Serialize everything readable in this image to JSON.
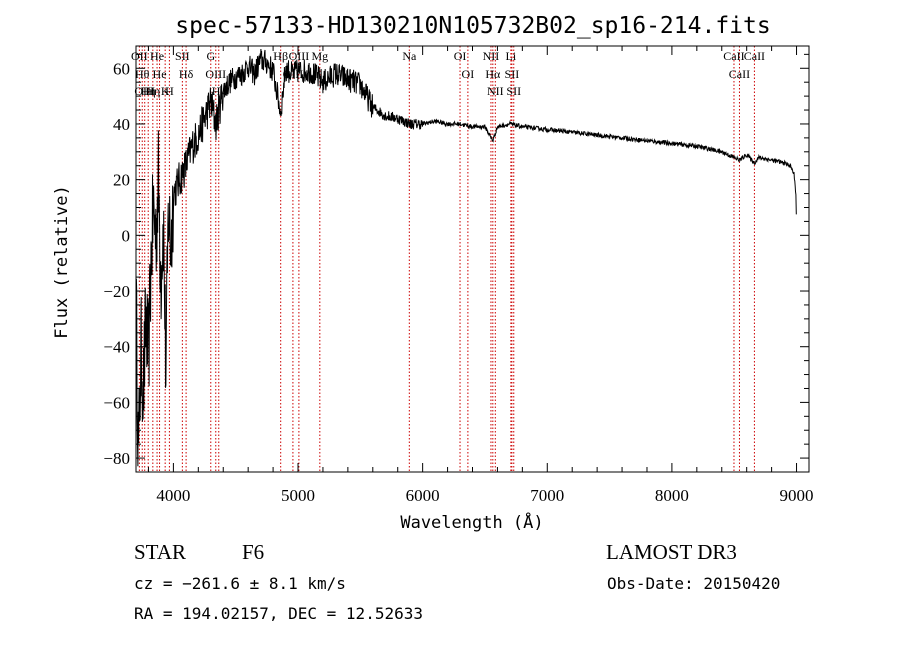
{
  "chart_data": {
    "type": "line",
    "title": "spec-57133-HD130210N105732B02_sp16-214.fits",
    "xlabel": "Wavelength (Å)",
    "ylabel": "Flux (relative)",
    "xlim": [
      3700,
      9100
    ],
    "ylim": [
      -85,
      68
    ],
    "xticks": [
      4000,
      5000,
      6000,
      7000,
      8000,
      9000
    ],
    "yticks": [
      -80,
      -60,
      -40,
      -20,
      0,
      20,
      40,
      60
    ],
    "xtick_labels": [
      "4000",
      "5000",
      "6000",
      "7000",
      "8000",
      "9000"
    ],
    "ytick_labels": [
      "−80",
      "−60",
      "−40",
      "−20",
      "0",
      "20",
      "40",
      "60"
    ],
    "grid": false,
    "line_color": "#000000",
    "marker_color": "#cc0000",
    "spectrum_anchors": [
      [
        3700,
        -20
      ],
      [
        3720,
        -80
      ],
      [
        3740,
        -40
      ],
      [
        3760,
        -55
      ],
      [
        3780,
        -30
      ],
      [
        3800,
        -45
      ],
      [
        3820,
        -10
      ],
      [
        3840,
        10
      ],
      [
        3860,
        0
      ],
      [
        3880,
        20
      ],
      [
        3900,
        -15
      ],
      [
        3920,
        5
      ],
      [
        3940,
        -50
      ],
      [
        3960,
        10
      ],
      [
        3980,
        -5
      ],
      [
        4000,
        15
      ],
      [
        4050,
        20
      ],
      [
        4100,
        25
      ],
      [
        4150,
        32
      ],
      [
        4200,
        36
      ],
      [
        4250,
        42
      ],
      [
        4300,
        48
      ],
      [
        4340,
        40
      ],
      [
        4400,
        52
      ],
      [
        4450,
        55
      ],
      [
        4500,
        57
      ],
      [
        4550,
        58
      ],
      [
        4600,
        61
      ],
      [
        4650,
        58
      ],
      [
        4700,
        63
      ],
      [
        4750,
        62
      ],
      [
        4800,
        59
      ],
      [
        4861,
        44
      ],
      [
        4900,
        60
      ],
      [
        4950,
        58
      ],
      [
        5000,
        59
      ],
      [
        5100,
        59
      ],
      [
        5200,
        55
      ],
      [
        5300,
        58
      ],
      [
        5400,
        56
      ],
      [
        5500,
        54
      ],
      [
        5600,
        46
      ],
      [
        5700,
        43
      ],
      [
        5800,
        42
      ],
      [
        5900,
        40
      ],
      [
        6000,
        40
      ],
      [
        6100,
        41
      ],
      [
        6200,
        40
      ],
      [
        6300,
        40
      ],
      [
        6400,
        39
      ],
      [
        6500,
        39
      ],
      [
        6563,
        34
      ],
      [
        6600,
        39
      ],
      [
        6700,
        40
      ],
      [
        6800,
        39
      ],
      [
        7000,
        38
      ],
      [
        7200,
        37
      ],
      [
        7400,
        36
      ],
      [
        7600,
        35
      ],
      [
        7800,
        34
      ],
      [
        8000,
        33
      ],
      [
        8200,
        32
      ],
      [
        8400,
        30
      ],
      [
        8498,
        28
      ],
      [
        8542,
        27
      ],
      [
        8600,
        29
      ],
      [
        8662,
        26
      ],
      [
        8700,
        28
      ],
      [
        8800,
        27
      ],
      [
        8900,
        26
      ],
      [
        8950,
        25
      ],
      [
        8980,
        22
      ],
      [
        8995,
        15
      ],
      [
        9000,
        2
      ]
    ],
    "line_markers": [
      {
        "wavelength": 3727,
        "label": "OII"
      },
      {
        "wavelength": 3750,
        "label": "Hθ"
      },
      {
        "wavelength": 3770,
        "label": "OIII"
      },
      {
        "wavelength": 3798,
        "label": "Hη"
      },
      {
        "wavelength": 3835,
        "label": "Hη"
      },
      {
        "wavelength": 3869,
        "label": "He"
      },
      {
        "wavelength": 3889,
        "label": "He"
      },
      {
        "wavelength": 3934,
        "label": "K"
      },
      {
        "wavelength": 3968,
        "label": "H"
      },
      {
        "wavelength": 4072,
        "label": "SII"
      },
      {
        "wavelength": 4102,
        "label": "Hδ"
      },
      {
        "wavelength": 4300,
        "label": "G"
      },
      {
        "wavelength": 4340,
        "label": "OIII"
      },
      {
        "wavelength": 4364,
        "label": "Hγ"
      },
      {
        "wavelength": 4861,
        "label": "Hβ"
      },
      {
        "wavelength": 4959,
        "label": "OIII"
      },
      {
        "wavelength": 5007,
        "label": "OIII"
      },
      {
        "wavelength": 5175,
        "label": "Mg"
      },
      {
        "wavelength": 5893,
        "label": "Na"
      },
      {
        "wavelength": 6300,
        "label": "OI"
      },
      {
        "wavelength": 6363,
        "label": "OI"
      },
      {
        "wavelength": 6548,
        "label": "NII"
      },
      {
        "wavelength": 6563,
        "label": "Hα"
      },
      {
        "wavelength": 6583,
        "label": "NII"
      },
      {
        "wavelength": 6708,
        "label": "Li"
      },
      {
        "wavelength": 6716,
        "label": "SII"
      },
      {
        "wavelength": 6731,
        "label": "SII"
      },
      {
        "wavelength": 8498,
        "label": "CaII"
      },
      {
        "wavelength": 8542,
        "label": "CaII"
      },
      {
        "wavelength": 8662,
        "label": "CaII"
      }
    ]
  },
  "info": {
    "object_class": "STAR",
    "subclass": "F6",
    "survey": "LAMOST DR3",
    "cz": "cz = −261.6 ± 8.1 km/s",
    "obs_date": "Obs-Date: 20150420",
    "radec": "RA = 194.02157, DEC =  12.52633"
  }
}
